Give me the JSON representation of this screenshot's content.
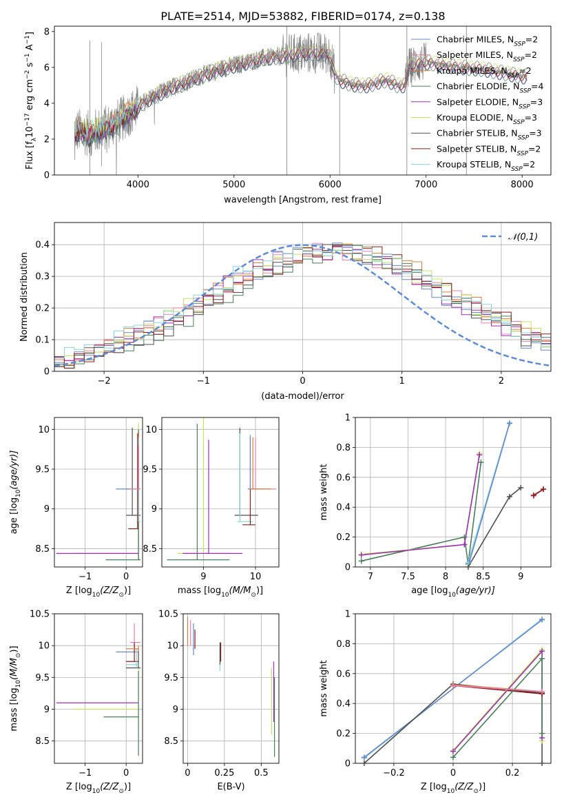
{
  "figure": {
    "title": "PLATE=2514, MJD=53882, FIBERID=0174, z=0.138"
  },
  "models": [
    {
      "key": "chab_miles",
      "label": "Chabrier MILES, N",
      "n": "2",
      "color": "#6688cc"
    },
    {
      "key": "salp_miles",
      "label": "Salpeter MILES, N",
      "n": "2",
      "color": "#e97fb1"
    },
    {
      "key": "krou_miles",
      "label": "Kroupa MILES, N",
      "n": "2",
      "color": "#e07b39"
    },
    {
      "key": "chab_elodie",
      "label": "Chabrier ELODIE, N",
      "n": "4",
      "color": "#4a7d5a"
    },
    {
      "key": "salp_elodie",
      "label": "Salpeter ELODIE, N",
      "n": "3",
      "color": "#9a2fb5"
    },
    {
      "key": "krou_elodie",
      "label": "Kroupa ELODIE, N",
      "n": "3",
      "color": "#c6e060"
    },
    {
      "key": "chab_stelib",
      "label": "Chabrier STELIB, N",
      "n": "3",
      "color": "#4d4d4d"
    },
    {
      "key": "salp_stelib",
      "label": "Salpeter STELIB, N",
      "n": "2",
      "color": "#8c1b1b"
    },
    {
      "key": "krou_stelib",
      "label": "Kroupa STELIB, N",
      "n": "2",
      "color": "#87d4d8"
    }
  ],
  "legend_sub": "SSP",
  "chart_data": [
    {
      "id": "spectrum",
      "type": "line",
      "xlabel": "wavelength [Angstrom, rest frame]",
      "ylabel_parts": [
        "Flux [f",
        "λ",
        "10",
        "−17",
        " erg cm",
        "−2",
        " s",
        "−1",
        " A",
        "−1",
        "]"
      ],
      "xlim": [
        3130,
        8300
      ],
      "ylim": [
        0,
        8.3
      ],
      "xticks": [
        4000,
        5000,
        6000,
        7000,
        8000
      ],
      "yticks": [
        0,
        2,
        4,
        6,
        8
      ],
      "grid": false,
      "legend_position": "top-right",
      "data_color": "#808080",
      "continuum": {
        "x": [
          3340,
          3500,
          3650,
          3800,
          3950,
          4100,
          4250,
          4400,
          4550,
          4700,
          4850,
          5000,
          5150,
          5300,
          5450,
          5600,
          5750,
          5900,
          6000,
          6050,
          6100,
          6200,
          6300,
          6400,
          6500,
          6600,
          6700,
          6780,
          6820,
          6900,
          7000,
          7200,
          7400,
          7600,
          7800,
          8000,
          8050
        ],
        "y": [
          2.5,
          2.3,
          2.6,
          3.0,
          3.6,
          4.2,
          4.6,
          5.0,
          5.3,
          5.6,
          5.9,
          6.1,
          6.3,
          6.5,
          6.6,
          6.7,
          6.8,
          6.8,
          6.75,
          5.6,
          5.3,
          5.1,
          5.0,
          5.0,
          5.2,
          5.3,
          5.0,
          5.0,
          6.0,
          6.2,
          6.3,
          6.1,
          6.0,
          5.9,
          5.7,
          5.5,
          5.5
        ]
      }
    },
    {
      "id": "residuals",
      "type": "histogram",
      "xlabel": "(data-model)/error",
      "ylabel": "Normed distribution",
      "xlim": [
        -2.5,
        2.5
      ],
      "ylim": [
        0,
        0.47
      ],
      "xticks": [
        -2,
        -1,
        0,
        1,
        2
      ],
      "yticks": [
        0,
        0.1,
        0.2,
        0.3,
        0.4
      ],
      "grid": true,
      "legend_position": "top-right",
      "reference": {
        "label": "𝒩(0,1)",
        "mean": 0,
        "sigma": 1,
        "color": "#5b8ad6"
      }
    },
    {
      "id": "age_vs_Z",
      "type": "errorbar",
      "xlabel": "Z [log",
      "xlabel_sub": "10",
      "xlabel_rest": "(Z/Z",
      "xlabel_sun": "⊙",
      "xlabel_end": ")]",
      "ylabel": "age  [log",
      "ylabel_sub": "10",
      "ylabel_rest": "(age/yr)]",
      "xlim": [
        -1.75,
        0.4
      ],
      "ylim": [
        8.27,
        10.15
      ],
      "xticks": [
        -1,
        0
      ],
      "yticks": [
        8.5,
        9.0,
        9.5,
        10.0
      ],
      "grid": true,
      "points": [
        {
          "m": "chab_stelib",
          "xl": 0.0,
          "xr": 0.35,
          "yb": 8.92,
          "yt": 10.02,
          "x": 0.15,
          "y": 8.92
        },
        {
          "m": "krou_elodie",
          "xl": -1.3,
          "xr": 0.3,
          "yb": 8.36,
          "yt": 10.08,
          "x": 0.3,
          "y": 8.44
        },
        {
          "m": "salp_elodie",
          "xl": -1.7,
          "xr": 0.3,
          "yb": 8.36,
          "yt": 9.98,
          "x": 0.3,
          "y": 8.44
        },
        {
          "m": "chab_elodie",
          "xl": -0.5,
          "xr": 0.35,
          "yb": 8.36,
          "yt": 10.0,
          "x": 0.3,
          "y": 8.36
        },
        {
          "m": "krou_miles",
          "xl": 0.0,
          "xr": 0.35,
          "yb": 8.84,
          "yt": 9.95,
          "x": 0.3,
          "y": 9.25
        },
        {
          "m": "krou_stelib",
          "xl": 0.25,
          "xr": 0.35,
          "yb": 8.84,
          "yt": 9.9,
          "x": 0.3,
          "y": 8.84
        },
        {
          "m": "salp_stelib",
          "xl": 0.05,
          "xr": 0.3,
          "yb": 8.75,
          "yt": 9.95,
          "x": 0.28,
          "y": 8.75
        },
        {
          "m": "chab_miles",
          "xl": -0.25,
          "xr": 0.3,
          "yb": 9.25,
          "yt": 9.7,
          "x": 0.3,
          "y": 9.25
        },
        {
          "m": "salp_miles",
          "xl": 0.1,
          "xr": 0.35,
          "yb": 9.25,
          "yt": 9.8,
          "x": 0.3,
          "y": 9.25
        }
      ]
    },
    {
      "id": "age_vs_mass",
      "type": "errorbar",
      "xlabel": "mass [log",
      "xlabel_sub": "10",
      "xlabel_rest": "(M/M",
      "xlabel_sun": "⊙",
      "xlabel_end": ")]",
      "xlim": [
        8.2,
        10.45
      ],
      "ylim": [
        8.27,
        10.15
      ],
      "xticks": [
        9,
        10
      ],
      "yticks": [
        8.5,
        9.0,
        9.5,
        10.0
      ],
      "grid": true,
      "points": [
        {
          "m": "chab_elodie",
          "xl": 8.3,
          "xr": 9.5,
          "yb": 8.36,
          "yt": 10.07,
          "x": 8.88,
          "y": 8.36
        },
        {
          "m": "krou_elodie",
          "xl": 8.5,
          "xr": 9.5,
          "yb": 8.44,
          "yt": 10.15,
          "x": 9.0,
          "y": 8.44
        },
        {
          "m": "salp_elodie",
          "xl": 8.6,
          "xr": 9.75,
          "yb": 8.44,
          "yt": 9.87,
          "x": 9.1,
          "y": 8.44
        },
        {
          "m": "chab_stelib",
          "xl": 9.6,
          "xr": 10.05,
          "yb": 8.92,
          "yt": 10.02,
          "x": 9.7,
          "y": 8.92
        },
        {
          "m": "krou_stelib",
          "xl": 9.65,
          "xr": 9.95,
          "yb": 8.84,
          "yt": 9.95,
          "x": 9.7,
          "y": 8.84
        },
        {
          "m": "salp_stelib",
          "xl": 9.75,
          "xr": 10.0,
          "yb": 8.8,
          "yt": 9.9,
          "x": 9.9,
          "y": 8.8
        },
        {
          "m": "chab_miles",
          "xl": 9.85,
          "xr": 10.1,
          "yb": 9.25,
          "yt": 9.93,
          "x": 9.9,
          "y": 9.25
        },
        {
          "m": "salp_miles",
          "xl": 9.9,
          "xr": 10.4,
          "yb": 9.25,
          "yt": 9.9,
          "x": 10.0,
          "y": 9.25
        },
        {
          "m": "krou_miles",
          "xl": 9.9,
          "xr": 10.3,
          "yb": 9.25,
          "yt": 9.9,
          "x": 9.95,
          "y": 9.25
        }
      ]
    },
    {
      "id": "weight_vs_age",
      "type": "line",
      "xlabel": "age  [log",
      "xlabel_sub": "10",
      "xlabel_rest": "(age/yr)]",
      "ylabel": "mass weight",
      "xlim": [
        6.8,
        9.4
      ],
      "ylim": [
        0,
        1
      ],
      "xticks": [
        7.0,
        7.5,
        8.0,
        8.5,
        9.0
      ],
      "yticks": [
        0.0,
        0.2,
        0.4,
        0.6,
        0.8,
        1.0
      ],
      "grid": true,
      "series": [
        {
          "m": "chab_elodie",
          "x": [
            6.88,
            8.25,
            8.3,
            8.47
          ],
          "y": [
            0.04,
            0.2,
            0.02,
            0.7
          ]
        },
        {
          "m": "krou_elodie",
          "x": [
            6.88,
            8.25,
            8.45
          ],
          "y": [
            0.085,
            0.15,
            0.76
          ]
        },
        {
          "m": "salp_elodie",
          "x": [
            6.88,
            8.25,
            8.45
          ],
          "y": [
            0.08,
            0.15,
            0.75
          ]
        },
        {
          "m": "chab_stelib",
          "x": [
            8.3,
            8.85,
            9.0
          ],
          "y": [
            0.0,
            0.47,
            0.53
          ]
        },
        {
          "m": "krou_stelib",
          "x": [
            8.3,
            8.85
          ],
          "y": [
            0.03,
            0.965
          ]
        },
        {
          "m": "chab_miles",
          "x": [
            8.32,
            8.85
          ],
          "y": [
            0.04,
            0.96
          ]
        },
        {
          "m": "krou_miles",
          "x": [
            9.17,
            9.3
          ],
          "y": [
            0.475,
            0.52
          ]
        },
        {
          "m": "salp_miles",
          "x": [
            9.17,
            9.3
          ],
          "y": [
            0.475,
            0.52
          ]
        },
        {
          "m": "salp_stelib",
          "x": [
            9.17,
            9.3
          ],
          "y": [
            0.48,
            0.52
          ]
        }
      ]
    },
    {
      "id": "mass_vs_Z",
      "type": "errorbar",
      "xlabel": "Z [log",
      "xlabel_sub": "10",
      "xlabel_rest": "(Z/Z",
      "xlabel_sun": "⊙",
      "xlabel_end": ")]",
      "ylabel": "mass [log",
      "ylabel_sub": "10",
      "ylabel_rest": "(M/M",
      "ylabel_sun": "⊙",
      "ylabel_end": ")]",
      "xlim": [
        -1.75,
        0.4
      ],
      "ylim": [
        8.15,
        10.5
      ],
      "xticks": [
        -1,
        0
      ],
      "yticks": [
        8.5,
        9.0,
        9.5,
        10.0,
        10.5
      ],
      "grid": true,
      "points": [
        {
          "m": "salp_elodie",
          "xl": -1.7,
          "xr": 0.3,
          "yb": 9.1,
          "yt": 9.1,
          "x": 0.3,
          "y": 9.1
        },
        {
          "m": "krou_elodie",
          "xl": -1.3,
          "xr": 0.3,
          "yb": 8.65,
          "yt": 9.7,
          "x": 0.3,
          "y": 9.0
        },
        {
          "m": "chab_elodie",
          "xl": -0.55,
          "xr": 0.3,
          "yb": 8.27,
          "yt": 9.6,
          "x": 0.3,
          "y": 8.88
        },
        {
          "m": "salp_miles",
          "xl": 0.1,
          "xr": 0.35,
          "yb": 9.9,
          "yt": 10.35,
          "x": 0.2,
          "y": 10.05
        },
        {
          "m": "chab_miles",
          "xl": -0.25,
          "xr": 0.3,
          "yb": 9.9,
          "yt": 10.05,
          "x": 0.2,
          "y": 9.9
        },
        {
          "m": "salp_stelib",
          "xl": 0.0,
          "xr": 0.3,
          "yb": 9.75,
          "yt": 10.05,
          "x": 0.2,
          "y": 9.75
        },
        {
          "m": "chab_stelib",
          "xl": 0.0,
          "xr": 0.35,
          "yb": 9.65,
          "yt": 9.95,
          "x": 0.3,
          "y": 9.65
        },
        {
          "m": "krou_stelib",
          "xl": 0.0,
          "xr": 0.3,
          "yb": 9.65,
          "yt": 9.95,
          "x": 0.25,
          "y": 9.7
        },
        {
          "m": "krou_miles",
          "xl": 0.0,
          "xr": 0.3,
          "yb": 9.9,
          "yt": 10.0,
          "x": 0.3,
          "y": 9.95
        }
      ]
    },
    {
      "id": "mass_vs_ebv",
      "type": "errorbar",
      "xlabel": "E(B-V)",
      "xlim": [
        -0.03,
        0.62
      ],
      "ylim": [
        8.15,
        10.5
      ],
      "xticks": [
        0.0,
        0.25,
        0.5
      ],
      "yticks": [
        8.5,
        9.0,
        9.5,
        10.0,
        10.5
      ],
      "grid": true,
      "points": [
        {
          "m": "krou_miles",
          "x": 0.0,
          "yb": 10.0,
          "yt": 10.45
        },
        {
          "m": "salp_miles",
          "x": 0.02,
          "yb": 10.0,
          "yt": 10.4
        },
        {
          "m": "chab_miles",
          "x": 0.04,
          "yb": 9.85,
          "yt": 10.35
        },
        {
          "m": "salp_stelib",
          "x": 0.05,
          "yb": 9.95,
          "yt": 10.25
        },
        {
          "m": "krou_stelib",
          "x": 0.22,
          "yb": 9.6,
          "yt": 10.0
        },
        {
          "m": "chab_stelib",
          "x": 0.22,
          "yb": 9.7,
          "yt": 10.05
        },
        {
          "m": "salp_stelib",
          "x": 0.225,
          "yb": 9.75,
          "yt": 10.05
        },
        {
          "m": "krou_elodie",
          "x": 0.57,
          "yb": 8.6,
          "yt": 9.65
        },
        {
          "m": "salp_elodie",
          "x": 0.585,
          "yb": 8.8,
          "yt": 9.75
        },
        {
          "m": "chab_elodie",
          "x": 0.59,
          "yb": 8.25,
          "yt": 9.5
        }
      ]
    },
    {
      "id": "weight_vs_Z",
      "type": "line",
      "xlabel": "Z [log",
      "xlabel_sub": "10",
      "xlabel_rest": "(Z/Z",
      "xlabel_sun": "⊙",
      "xlabel_end": ")]",
      "ylabel": "mass weight",
      "xlim": [
        -0.33,
        0.33
      ],
      "ylim": [
        0,
        1
      ],
      "xticks": [
        -0.2,
        0.0,
        0.2
      ],
      "yticks": [
        0.0,
        0.2,
        0.4,
        0.6,
        0.8,
        1.0
      ],
      "grid": true,
      "series": [
        {
          "m": "krou_stelib",
          "x": [
            -0.3,
            0.3
          ],
          "y": [
            0.035,
            0.965
          ]
        },
        {
          "m": "chab_miles",
          "x": [
            -0.3,
            0.3
          ],
          "y": [
            0.04,
            0.96
          ]
        },
        {
          "m": "chab_stelib",
          "x": [
            -0.3,
            0.0,
            0.3,
            0.3
          ],
          "y": [
            0.0,
            0.53,
            0.47,
            0.0
          ]
        },
        {
          "m": "salp_stelib",
          "x": [
            0.0,
            0.3
          ],
          "y": [
            0.52,
            0.465
          ]
        },
        {
          "m": "krou_miles",
          "x": [
            0.0,
            0.3
          ],
          "y": [
            0.525,
            0.48
          ]
        },
        {
          "m": "krou_elodie",
          "x": [
            0.0,
            0.3,
            0.3
          ],
          "y": [
            0.085,
            0.76,
            0.15
          ]
        },
        {
          "m": "salp_elodie",
          "x": [
            0.0,
            0.3,
            0.3
          ],
          "y": [
            0.08,
            0.75,
            0.17
          ]
        },
        {
          "m": "chab_elodie",
          "x": [
            0.0,
            0.3,
            0.3
          ],
          "y": [
            0.04,
            0.7,
            0.2
          ]
        },
        {
          "m": "salp_miles",
          "x": [
            0.0,
            0.3
          ],
          "y": [
            0.52,
            0.48
          ]
        }
      ]
    }
  ]
}
